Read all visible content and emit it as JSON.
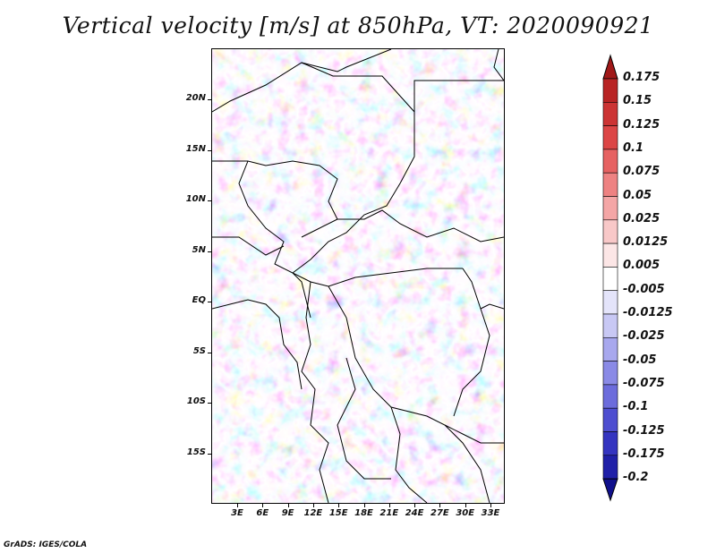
{
  "title": "Vertical velocity [m/s] at 850hPa, VT: 2020090921",
  "footer": "GrADS: IGES/COLA",
  "map": {
    "lat_labels": [
      "20N",
      "15N",
      "10N",
      "5N",
      "EQ",
      "5S",
      "10S",
      "15S"
    ],
    "lon_labels": [
      "3E",
      "6E",
      "9E",
      "12E",
      "15E",
      "18E",
      "21E",
      "24E",
      "27E",
      "30E",
      "33E"
    ]
  },
  "colorbar": {
    "levels": [
      "0.175",
      "0.15",
      "0.125",
      "0.1",
      "0.075",
      "0.05",
      "0.025",
      "0.0125",
      "0.005",
      "-0.005",
      "-0.0125",
      "-0.025",
      "-0.05",
      "-0.075",
      "-0.1",
      "-0.125",
      "-0.175",
      "-0.2"
    ],
    "colors": [
      "#a01818",
      "#b82424",
      "#cc3434",
      "#dc4646",
      "#e66262",
      "#ee8282",
      "#f4a6a6",
      "#f8c8c8",
      "#fce6e6",
      "#ffffff",
      "#e4e4fa",
      "#c8c8f4",
      "#a8a8ee",
      "#8a8ae6",
      "#6c6cdc",
      "#4e4ed0",
      "#3434c0",
      "#2020a8",
      "#10108c"
    ]
  }
}
